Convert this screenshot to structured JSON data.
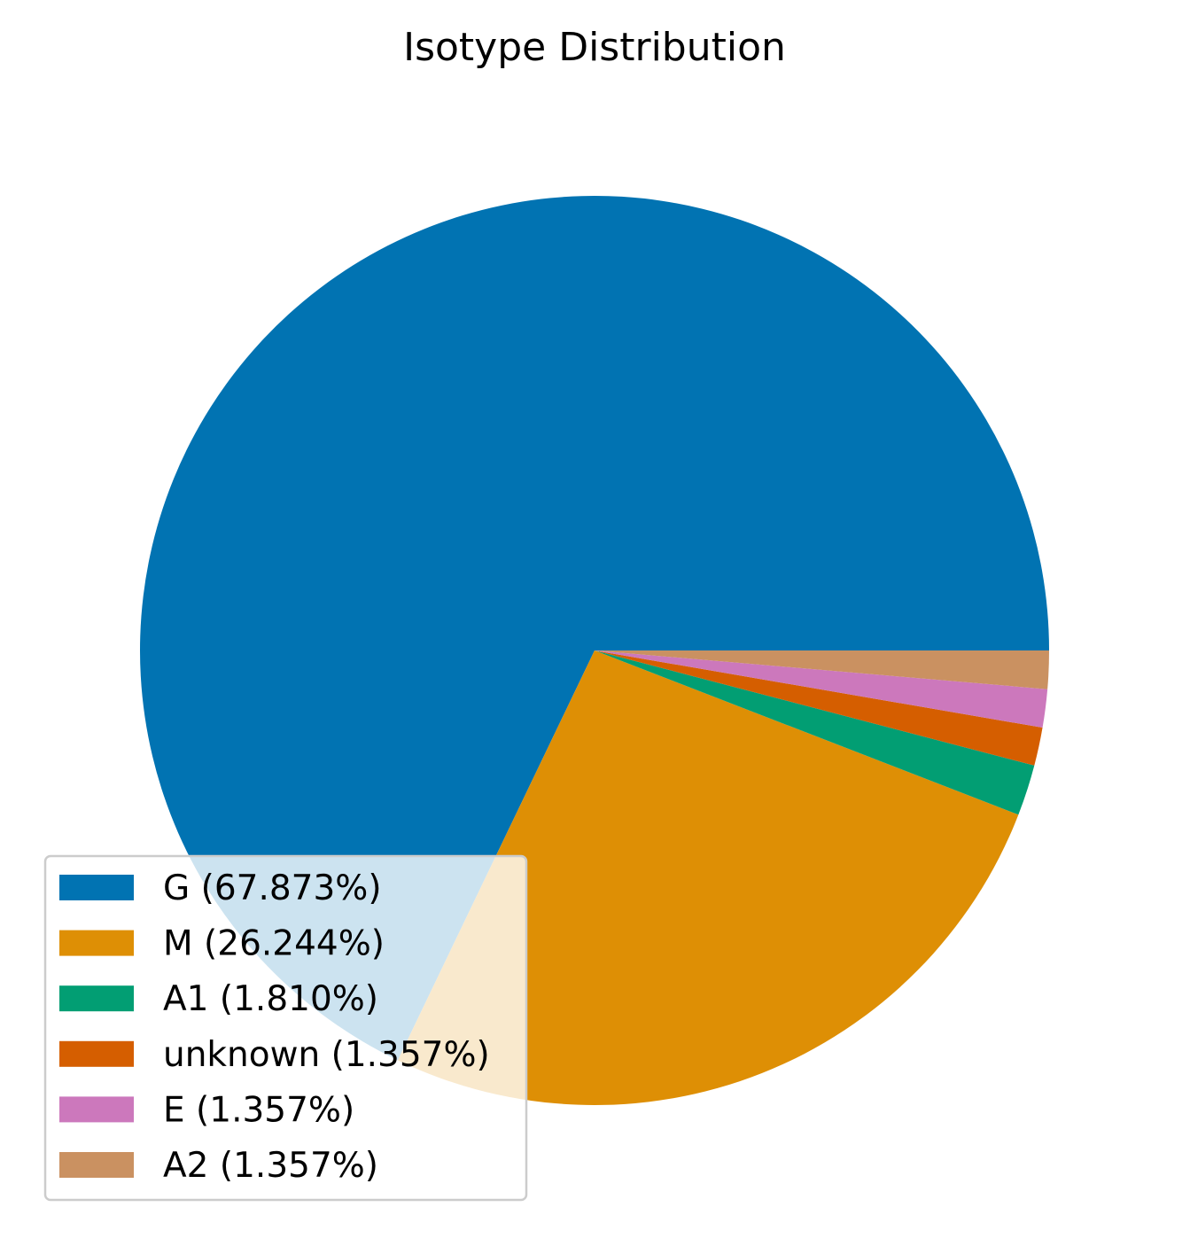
{
  "chart_data": {
    "type": "pie",
    "title": "Isotype Distribution",
    "start_angle_deg": 0,
    "direction": "counterclockwise",
    "legend_position": "lower-left",
    "slices": [
      {
        "label": "G",
        "value": 67.873,
        "legend": "G (67.873%)",
        "color": "#0173b2"
      },
      {
        "label": "M",
        "value": 26.244,
        "legend": "M (26.244%)",
        "color": "#de8f05"
      },
      {
        "label": "A1",
        "value": 1.81,
        "legend": "A1 (1.810%)",
        "color": "#029e73"
      },
      {
        "label": "unknown",
        "value": 1.357,
        "legend": "unknown (1.357%)",
        "color": "#d55e00"
      },
      {
        "label": "E",
        "value": 1.357,
        "legend": "E (1.357%)",
        "color": "#cc78bc"
      },
      {
        "label": "A2",
        "value": 1.357,
        "legend": "A2 (1.357%)",
        "color": "#ca9161"
      }
    ]
  }
}
